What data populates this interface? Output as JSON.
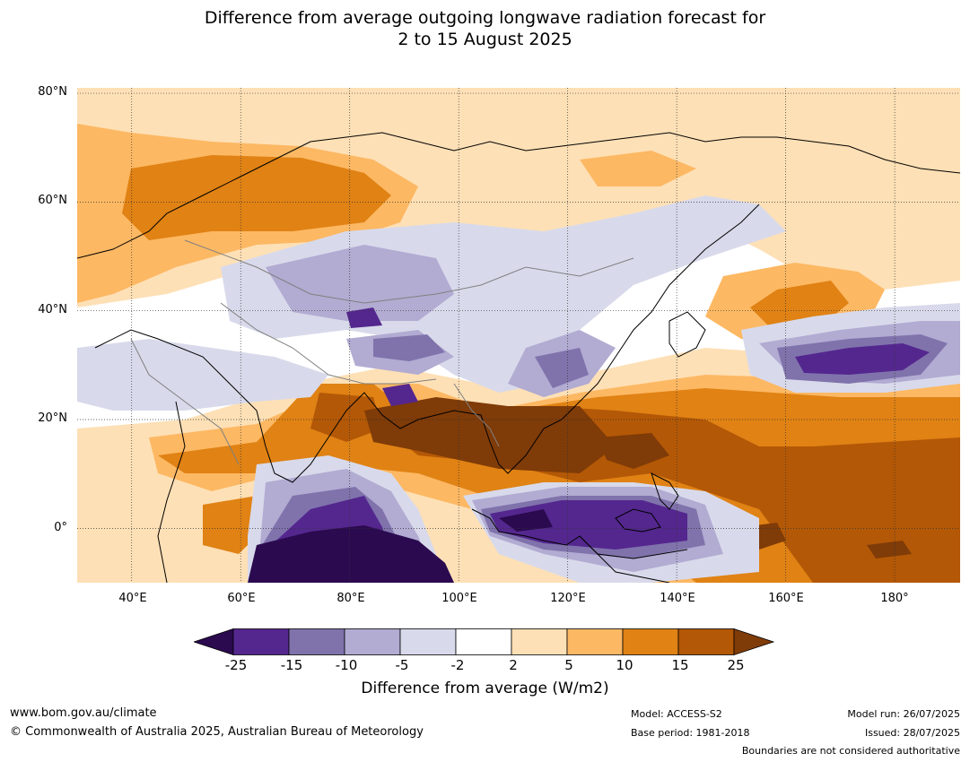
{
  "title": {
    "line1": "Difference from average outgoing longwave radiation forecast for",
    "line2": "2 to 15 August 2025"
  },
  "map": {
    "lat_labels": [
      "80°N",
      "60°N",
      "40°N",
      "20°N",
      "0°"
    ],
    "lon_labels": [
      "40°E",
      "60°E",
      "80°E",
      "100°E",
      "120°E",
      "140°E",
      "160°E",
      "180°"
    ],
    "extent": {
      "lon": [
        30,
        192
      ],
      "lat": [
        -10,
        81
      ]
    }
  },
  "legend": {
    "ticks": [
      "-25",
      "-15",
      "-10",
      "-5",
      "-2",
      "2",
      "5",
      "10",
      "15",
      "25"
    ],
    "colors": [
      "#2b0a4f",
      "#54278f",
      "#8073ac",
      "#b2abd2",
      "#d8daeb",
      "#ffffff",
      "#fee0b6",
      "#fdb863",
      "#e08214",
      "#b35806",
      "#7f3b08"
    ],
    "label": "Difference from average (W/m2)"
  },
  "footer": {
    "website": "www.bom.gov.au/climate",
    "copyright": "© Commonwealth of Australia 2025, Australian Bureau of Meteorology",
    "model": "Model: ACCESS-S2",
    "base_period": "Base period: 1981-2018",
    "model_run": "Model run: 26/07/2025",
    "issued": "Issued: 28/07/2025",
    "disclaimer": "Boundaries are not considered authoritative"
  }
}
